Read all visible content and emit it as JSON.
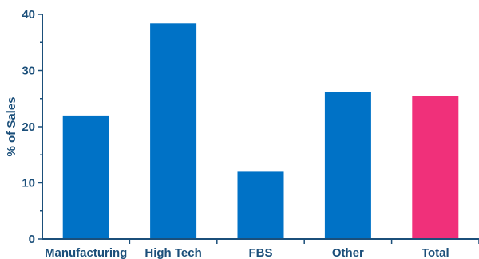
{
  "chart_data": {
    "type": "bar",
    "title": "",
    "xlabel": "",
    "ylabel": "% of Sales",
    "categories": [
      "Manufacturing",
      "High Tech",
      "FBS",
      "Other",
      "Total"
    ],
    "values": [
      22,
      38.4,
      12,
      26.2,
      25.5
    ],
    "ylim": [
      0,
      40
    ],
    "yticks": [
      "0",
      "10",
      "20",
      "30",
      "40"
    ],
    "grid": false,
    "legend": "none",
    "colors": {
      "bar": "#0072c6",
      "highlight_bar": "#f0307a",
      "axis": "#1b4f7a",
      "text": "#1b4f7a"
    },
    "highlight_index": 4
  }
}
